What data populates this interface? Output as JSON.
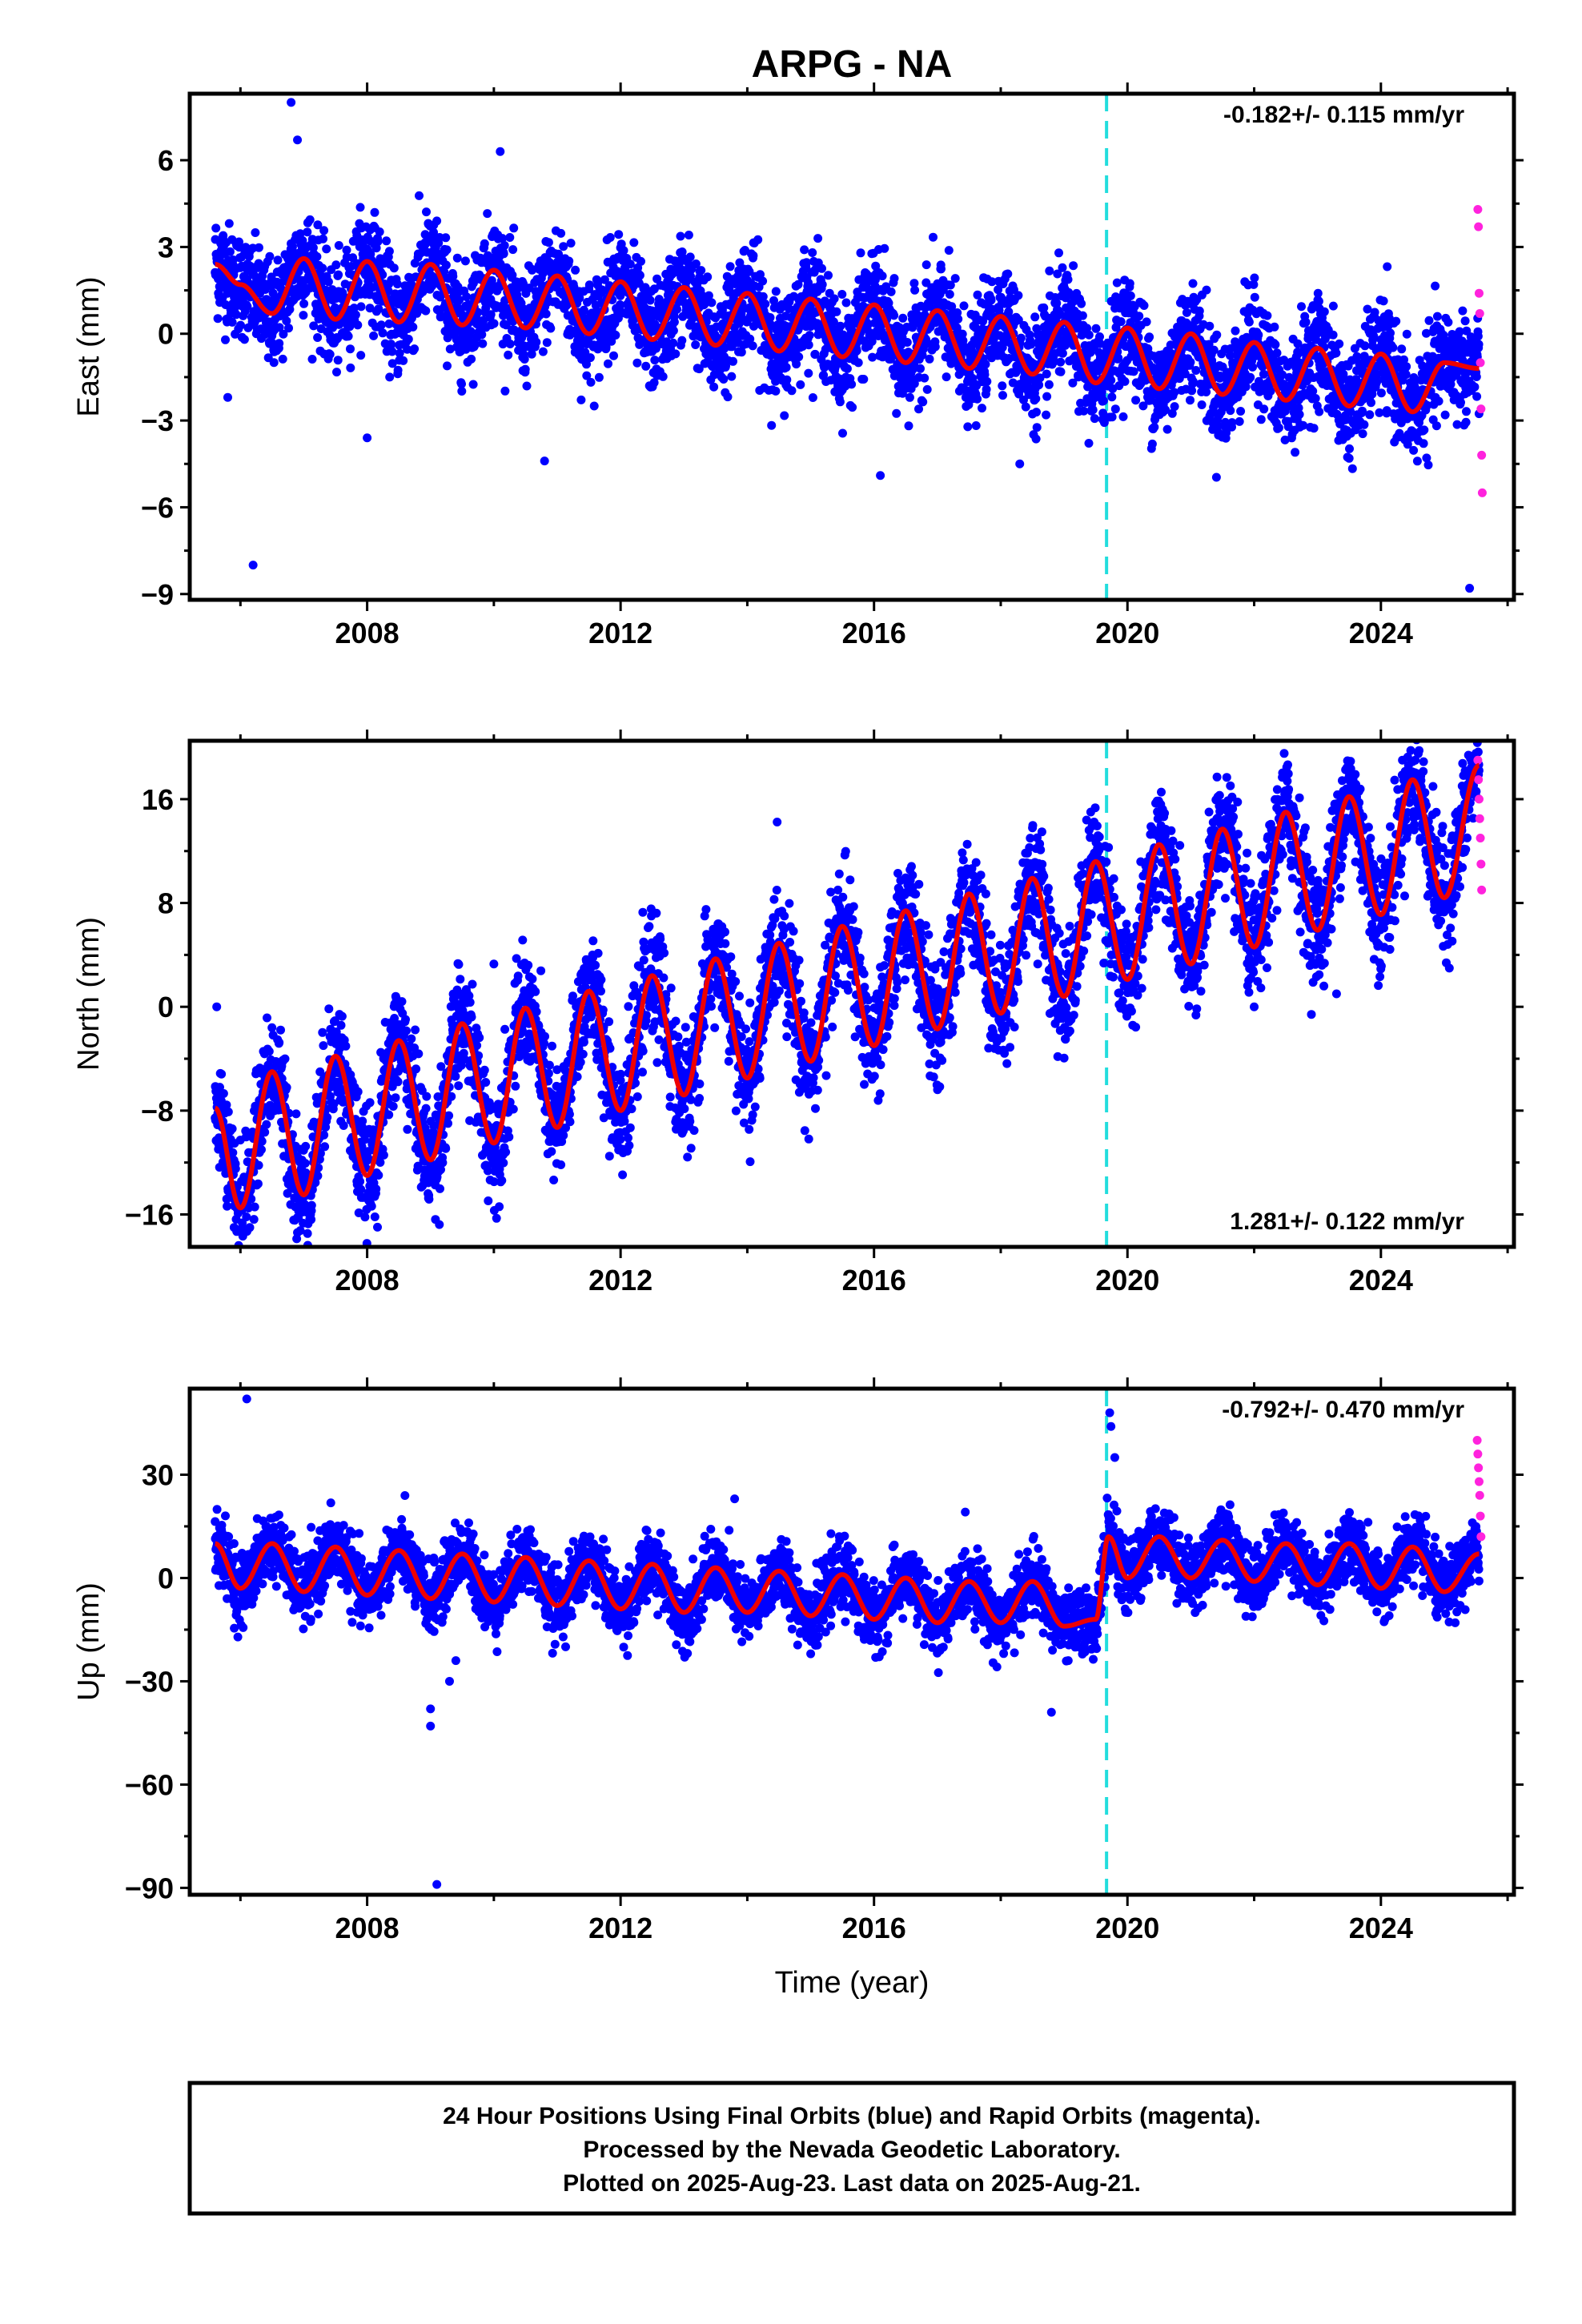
{
  "title": "ARPG - NA",
  "xlabel": "Time (year)",
  "caption": [
    "24 Hour Positions Using Final Orbits (blue) and Rapid Orbits (magenta).",
    "Processed by the Nevada Geodetic Laboratory.",
    "Plotted on 2025-Aug-23. Last data on 2025-Aug-21."
  ],
  "colors": {
    "final": "#0000ff",
    "rapid": "#ff22dd",
    "model": "#ee0000",
    "offset_line": "#22dddd",
    "frame": "#000000"
  },
  "chart_data": [
    {
      "type": "scatter",
      "ylabel": "East (mm)",
      "rate_label": "-0.182+/- 0.115 mm/yr",
      "xlim": [
        2005.2,
        2026.1
      ],
      "ylim": [
        -9.2,
        8.3
      ],
      "xticks": [
        2008,
        2012,
        2016,
        2020,
        2024
      ],
      "yticks": [
        6,
        3,
        0,
        -3,
        -6,
        -9
      ],
      "ytick_labels": [
        "6",
        "3",
        "0",
        "−3",
        "−6",
        "−9"
      ],
      "offset_epoch": 2019.67,
      "data_start": 2005.6,
      "data_end": 2025.55,
      "series": [
        {
          "role": "model",
          "x": [
            2005.6,
            2006.0,
            2006.5,
            2007.0,
            2007.5,
            2008.0,
            2008.5,
            2009.0,
            2009.5,
            2010.0,
            2010.5,
            2011.0,
            2011.5,
            2012.0,
            2012.5,
            2013.0,
            2013.5,
            2014.0,
            2014.5,
            2015.0,
            2015.5,
            2016.0,
            2016.5,
            2017.0,
            2017.5,
            2018.0,
            2018.5,
            2019.0,
            2019.5,
            2020.0,
            2020.5,
            2021.0,
            2021.5,
            2022.0,
            2022.5,
            2023.0,
            2023.5,
            2024.0,
            2024.5,
            2025.0,
            2025.55
          ],
          "y": [
            2.4,
            1.7,
            0.7,
            2.6,
            0.5,
            2.5,
            0.4,
            2.4,
            0.3,
            2.2,
            0.2,
            2.0,
            0.0,
            1.8,
            -0.2,
            1.6,
            -0.4,
            1.4,
            -0.6,
            1.2,
            -0.8,
            1.0,
            -1.0,
            0.8,
            -1.2,
            0.6,
            -1.4,
            0.4,
            -1.7,
            0.2,
            -1.9,
            0.0,
            -2.1,
            -0.3,
            -2.3,
            -0.5,
            -2.5,
            -0.7,
            -2.7,
            -1.0,
            -1.2
          ]
        },
        {
          "role": "rapid",
          "x": [
            2025.53,
            2025.54,
            2025.55,
            2025.56,
            2025.57,
            2025.58,
            2025.59,
            2025.6
          ],
          "y": [
            4.3,
            3.7,
            1.4,
            0.7,
            -1.0,
            -2.6,
            -4.2,
            -5.5
          ]
        }
      ],
      "outliers": {
        "x": [
          2005.8,
          2006.2,
          2006.8,
          2006.9,
          2008.0,
          2010.1,
          2010.8,
          2016.1,
          2018.3,
          2025.4
        ],
        "y": [
          -2.2,
          -8.0,
          8.0,
          6.7,
          -3.6,
          6.3,
          -4.4,
          -4.9,
          -4.5,
          -8.8
        ]
      }
    },
    {
      "type": "scatter",
      "ylabel": "North (mm)",
      "rate_label": "1.281+/- 0.122 mm/yr",
      "xlim": [
        2005.2,
        2026.1
      ],
      "ylim": [
        -18.5,
        20.5
      ],
      "xticks": [
        2008,
        2012,
        2016,
        2020,
        2024
      ],
      "yticks": [
        16,
        8,
        0,
        -8,
        -16
      ],
      "ytick_labels": [
        "16",
        "8",
        "0",
        "−8",
        "−16"
      ],
      "offset_epoch": 2019.67,
      "data_start": 2005.6,
      "data_end": 2025.55,
      "series": [
        {
          "role": "model",
          "x": [
            2005.6,
            2006.0,
            2006.5,
            2007.0,
            2007.5,
            2008.0,
            2008.5,
            2009.0,
            2009.5,
            2010.0,
            2010.5,
            2011.0,
            2011.5,
            2012.0,
            2012.5,
            2013.0,
            2013.5,
            2014.0,
            2014.5,
            2015.0,
            2015.5,
            2016.0,
            2016.5,
            2017.0,
            2017.5,
            2018.0,
            2018.5,
            2019.0,
            2019.5,
            2020.0,
            2020.5,
            2021.0,
            2021.5,
            2022.0,
            2022.5,
            2023.0,
            2023.5,
            2024.0,
            2024.5,
            2025.0,
            2025.55
          ],
          "y": [
            -7.8,
            -15.5,
            -5.0,
            -14.5,
            -3.8,
            -13.0,
            -2.6,
            -11.8,
            -1.3,
            -10.5,
            -0.1,
            -9.3,
            1.2,
            -8.0,
            2.4,
            -6.8,
            3.7,
            -5.5,
            4.9,
            -4.2,
            6.2,
            -3.0,
            7.4,
            -1.7,
            8.7,
            -0.5,
            9.9,
            0.8,
            11.2,
            2.1,
            12.5,
            3.3,
            13.7,
            4.6,
            15.0,
            5.9,
            16.2,
            7.1,
            17.5,
            8.4,
            18.6
          ]
        },
        {
          "role": "rapid",
          "x": [
            2025.53,
            2025.54,
            2025.55,
            2025.56,
            2025.57,
            2025.58,
            2025.59
          ],
          "y": [
            19.0,
            17.5,
            16.0,
            14.5,
            13.0,
            11.0,
            9.0
          ]
        }
      ],
      "outliers": {
        "x": [
          2005.9,
          2006.9,
          2010.0,
          2022.0,
          2023.3
        ],
        "y": [
          -17.0,
          -17.4,
          3.3,
          0.0,
          1.0
        ]
      }
    },
    {
      "type": "scatter",
      "ylabel": "Up (mm)",
      "rate_label": "-0.792+/- 0.470 mm/yr",
      "xlim": [
        2005.2,
        2026.1
      ],
      "ylim": [
        -92,
        55
      ],
      "xticks": [
        2008,
        2012,
        2016,
        2020,
        2024
      ],
      "yticks": [
        30,
        0,
        -30,
        -60,
        -90
      ],
      "ytick_labels": [
        "30",
        "0",
        "−30",
        "−60",
        "−90"
      ],
      "offset_epoch": 2019.67,
      "data_start": 2005.6,
      "data_end": 2025.55,
      "series": [
        {
          "role": "model",
          "x": [
            2005.6,
            2006.0,
            2006.5,
            2007.0,
            2007.5,
            2008.0,
            2008.5,
            2009.0,
            2009.5,
            2010.0,
            2010.5,
            2011.0,
            2011.5,
            2012.0,
            2012.5,
            2013.0,
            2013.5,
            2014.0,
            2014.5,
            2015.0,
            2015.5,
            2016.0,
            2016.5,
            2017.0,
            2017.5,
            2018.0,
            2018.5,
            2019.0,
            2019.5,
            2019.7,
            2020.0,
            2020.5,
            2021.0,
            2021.5,
            2022.0,
            2022.5,
            2023.0,
            2023.5,
            2024.0,
            2024.5,
            2025.0,
            2025.55
          ],
          "y": [
            10,
            -3,
            10,
            -4,
            9,
            -5,
            8,
            -6,
            7,
            -7,
            6,
            -8,
            5,
            -9,
            4,
            -10,
            3,
            -10,
            2,
            -11,
            1,
            -12,
            0,
            -13,
            -1,
            -13,
            -1,
            -14,
            -12,
            12,
            0,
            12,
            0,
            11,
            -1,
            10,
            -2,
            10,
            -3,
            9,
            -4,
            7
          ]
        },
        {
          "role": "rapid",
          "x": [
            2025.52,
            2025.53,
            2025.54,
            2025.55,
            2025.56,
            2025.57,
            2025.58
          ],
          "y": [
            40,
            36,
            32,
            28,
            24,
            18,
            12
          ]
        }
      ],
      "outliers": {
        "x": [
          2005.9,
          2006.1,
          2009.0,
          2009.0,
          2009.1,
          2009.3,
          2009.4,
          2013.8,
          2018.8,
          2019.72,
          2019.74,
          2019.8
        ],
        "y": [
          10,
          52,
          -38,
          -43,
          -89,
          -30,
          -24,
          23,
          -39,
          48,
          44,
          35
        ]
      }
    }
  ]
}
